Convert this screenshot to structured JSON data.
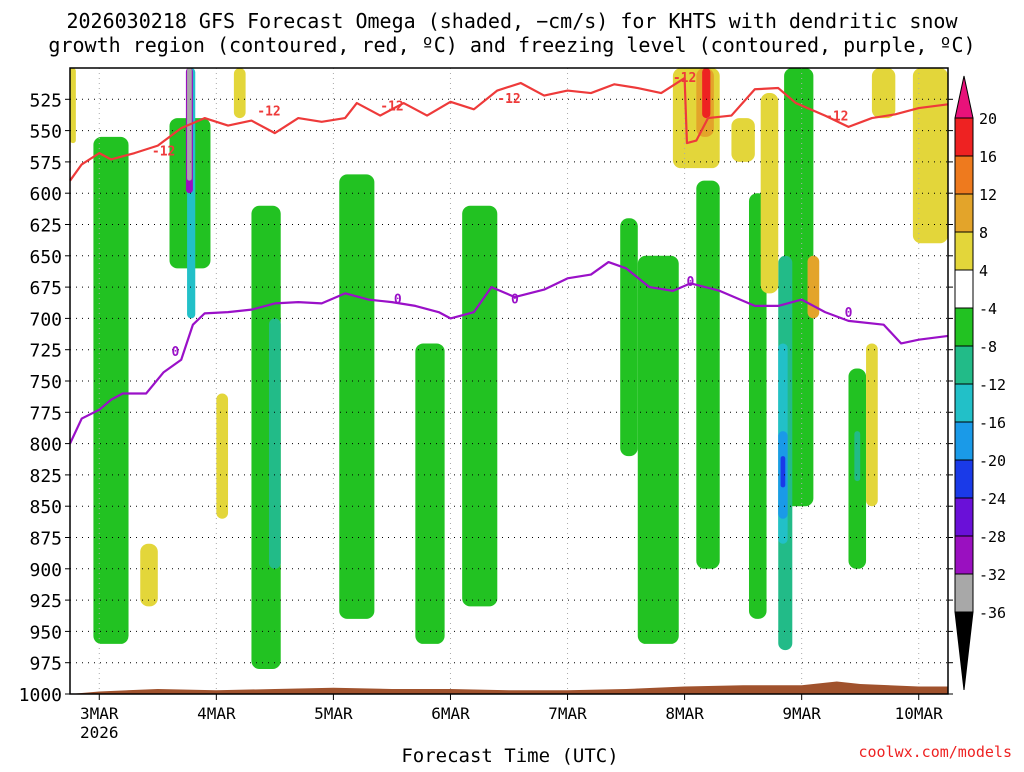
{
  "chart_data": {
    "type": "heatmap",
    "title_line1": "2026030218 GFS Forecast Omega (shaded, −cm/s) for KHTS with dendritic snow",
    "title_line2": "growth region (contoured, red, ºC) and freezing level (contoured, purple, ºC)",
    "xlabel": "Forecast Time (UTC)",
    "ylabel": "",
    "credit": "coolwx.com/models",
    "x_ticks": [
      {
        "day": 3.0,
        "label": "3MAR"
      },
      {
        "day": 4.0,
        "label": "4MAR"
      },
      {
        "day": 5.0,
        "label": "5MAR"
      },
      {
        "day": 6.0,
        "label": "6MAR"
      },
      {
        "day": 7.0,
        "label": "7MAR"
      },
      {
        "day": 8.0,
        "label": "8MAR"
      },
      {
        "day": 9.0,
        "label": "9MAR"
      },
      {
        "day": 10.0,
        "label": "10MAR"
      }
    ],
    "x_year_label": "2026",
    "xlim": [
      2.75,
      10.25
    ],
    "ylim": [
      1000,
      500
    ],
    "y_ticks": [
      1000,
      975,
      950,
      925,
      900,
      875,
      850,
      825,
      800,
      775,
      750,
      725,
      700,
      675,
      650,
      625,
      600,
      575,
      550,
      525
    ],
    "grid": true,
    "colorbar": {
      "levels": [
        20,
        16,
        12,
        8,
        4,
        -4,
        -8,
        -12,
        -16,
        -20,
        -24,
        -28,
        -32,
        -36
      ],
      "colors": [
        "#ff3a60",
        "#ee2222",
        "#ee7a1e",
        "#e3a42a",
        "#e3d63a",
        "#ffffff",
        "#22c222",
        "#22bb88",
        "#22c0c8",
        "#1a9ae8",
        "#1a3ae8",
        "#6a10d8",
        "#9a10c0",
        "#a8a8a8",
        "#000000"
      ],
      "top_arrow_color": "#e8127a",
      "bottom_arrow_color": "#000000"
    },
    "contour_dgz": {
      "label": "-12",
      "color": "#ee3a3a",
      "points": [
        [
          2.75,
          590
        ],
        [
          2.85,
          577
        ],
        [
          3.0,
          568
        ],
        [
          3.1,
          573
        ],
        [
          3.3,
          568
        ],
        [
          3.5,
          562
        ],
        [
          3.7,
          548
        ],
        [
          3.9,
          540
        ],
        [
          4.1,
          546
        ],
        [
          4.3,
          542
        ],
        [
          4.5,
          552
        ],
        [
          4.7,
          540
        ],
        [
          4.9,
          543
        ],
        [
          5.1,
          540
        ],
        [
          5.2,
          528
        ],
        [
          5.4,
          538
        ],
        [
          5.6,
          528
        ],
        [
          5.8,
          538
        ],
        [
          6.0,
          527
        ],
        [
          6.2,
          533
        ],
        [
          6.4,
          518
        ],
        [
          6.6,
          512
        ],
        [
          6.8,
          522
        ],
        [
          7.0,
          518
        ],
        [
          7.2,
          520
        ],
        [
          7.4,
          513
        ],
        [
          7.6,
          516
        ],
        [
          7.8,
          520
        ],
        [
          8.0,
          508
        ],
        [
          8.02,
          560
        ],
        [
          8.1,
          558
        ],
        [
          8.2,
          540
        ],
        [
          8.4,
          538
        ],
        [
          8.6,
          517
        ],
        [
          8.8,
          516
        ],
        [
          8.95,
          528
        ],
        [
          9.2,
          538
        ],
        [
          9.4,
          547
        ],
        [
          9.6,
          540
        ],
        [
          9.8,
          537
        ],
        [
          10.0,
          532
        ],
        [
          10.25,
          529
        ]
      ],
      "labels_at": [
        [
          3.55,
          566
        ],
        [
          4.45,
          534
        ],
        [
          5.5,
          530
        ],
        [
          6.5,
          524
        ],
        [
          8.0,
          507
        ],
        [
          9.3,
          538
        ]
      ]
    },
    "contour_freezing": {
      "label": "0",
      "color": "#9a10c8",
      "points": [
        [
          2.75,
          800
        ],
        [
          2.85,
          780
        ],
        [
          3.0,
          773
        ],
        [
          3.1,
          765
        ],
        [
          3.2,
          760
        ],
        [
          3.4,
          760
        ],
        [
          3.55,
          743
        ],
        [
          3.7,
          733
        ],
        [
          3.8,
          705
        ],
        [
          3.9,
          696
        ],
        [
          4.1,
          695
        ],
        [
          4.3,
          693
        ],
        [
          4.5,
          688
        ],
        [
          4.7,
          687
        ],
        [
          4.9,
          688
        ],
        [
          5.1,
          680
        ],
        [
          5.3,
          685
        ],
        [
          5.5,
          687
        ],
        [
          5.7,
          690
        ],
        [
          5.9,
          695
        ],
        [
          6.0,
          700
        ],
        [
          6.2,
          695
        ],
        [
          6.35,
          675
        ],
        [
          6.55,
          683
        ],
        [
          6.8,
          677
        ],
        [
          7.0,
          668
        ],
        [
          7.2,
          665
        ],
        [
          7.35,
          655
        ],
        [
          7.5,
          660
        ],
        [
          7.7,
          675
        ],
        [
          7.9,
          678
        ],
        [
          8.05,
          672
        ],
        [
          8.3,
          678
        ],
        [
          8.6,
          690
        ],
        [
          8.8,
          690
        ],
        [
          9.0,
          685
        ],
        [
          9.2,
          695
        ],
        [
          9.4,
          702
        ],
        [
          9.7,
          705
        ],
        [
          9.85,
          720
        ],
        [
          10.0,
          717
        ],
        [
          10.25,
          714
        ]
      ],
      "labels_at": [
        [
          3.65,
          726
        ],
        [
          5.55,
          684
        ],
        [
          6.55,
          684
        ],
        [
          8.05,
          670
        ],
        [
          9.4,
          695
        ]
      ]
    },
    "omega_regions": [
      {
        "t0": 2.95,
        "t1": 3.25,
        "p0": 555,
        "p1": 960,
        "level": -6
      },
      {
        "t0": 3.6,
        "t1": 3.95,
        "p0": 540,
        "p1": 660,
        "level": -6
      },
      {
        "t0": 4.3,
        "t1": 4.55,
        "p0": 610,
        "p1": 980,
        "level": -6
      },
      {
        "t0": 5.05,
        "t1": 5.35,
        "p0": 585,
        "p1": 940,
        "level": -6
      },
      {
        "t0": 5.7,
        "t1": 5.95,
        "p0": 720,
        "p1": 960,
        "level": -6
      },
      {
        "t0": 6.1,
        "t1": 6.4,
        "p0": 610,
        "p1": 930,
        "level": -6
      },
      {
        "t0": 7.45,
        "t1": 7.6,
        "p0": 620,
        "p1": 810,
        "level": -6
      },
      {
        "t0": 7.6,
        "t1": 7.95,
        "p0": 650,
        "p1": 960,
        "level": -6
      },
      {
        "t0": 8.1,
        "t1": 8.3,
        "p0": 590,
        "p1": 900,
        "level": -6
      },
      {
        "t0": 8.55,
        "t1": 8.7,
        "p0": 600,
        "p1": 940,
        "level": -6
      },
      {
        "t0": 8.85,
        "t1": 9.1,
        "p0": 500,
        "p1": 850,
        "level": -6
      },
      {
        "t0": 9.4,
        "t1": 9.55,
        "p0": 740,
        "p1": 900,
        "level": -6
      },
      {
        "t0": 4.45,
        "t1": 4.55,
        "p0": 700,
        "p1": 900,
        "level": -10
      },
      {
        "t0": 8.8,
        "t1": 8.92,
        "p0": 650,
        "p1": 965,
        "level": -10
      },
      {
        "t0": 9.45,
        "t1": 9.5,
        "p0": 790,
        "p1": 830,
        "level": -10
      },
      {
        "t0": 8.8,
        "t1": 8.88,
        "p0": 720,
        "p1": 880,
        "level": -14
      },
      {
        "t0": 8.8,
        "t1": 8.88,
        "p0": 790,
        "p1": 860,
        "level": -18
      },
      {
        "t0": 8.82,
        "t1": 8.86,
        "p0": 810,
        "p1": 835,
        "level": -22
      },
      {
        "t0": 3.75,
        "t1": 3.82,
        "p0": 500,
        "p1": 700,
        "level": -14
      },
      {
        "t0": 3.74,
        "t1": 3.8,
        "p0": 500,
        "p1": 600,
        "level": -30
      },
      {
        "t0": 3.75,
        "t1": 3.79,
        "p0": 500,
        "p1": 590,
        "level": -36
      },
      {
        "t0": 7.9,
        "t1": 8.3,
        "p0": 500,
        "p1": 580,
        "level": 6
      },
      {
        "t0": 8.1,
        "t1": 8.25,
        "p0": 500,
        "p1": 555,
        "level": 10
      },
      {
        "t0": 8.15,
        "t1": 8.22,
        "p0": 500,
        "p1": 540,
        "level": 18
      },
      {
        "t0": 8.4,
        "t1": 8.6,
        "p0": 540,
        "p1": 575,
        "level": 6
      },
      {
        "t0": 8.65,
        "t1": 8.8,
        "p0": 520,
        "p1": 680,
        "level": 6
      },
      {
        "t0": 9.05,
        "t1": 9.15,
        "p0": 650,
        "p1": 700,
        "level": 10
      },
      {
        "t0": 9.55,
        "t1": 9.65,
        "p0": 720,
        "p1": 850,
        "level": 6
      },
      {
        "t0": 9.95,
        "t1": 10.25,
        "p0": 500,
        "p1": 640,
        "level": 6
      },
      {
        "t0": 9.6,
        "t1": 9.8,
        "p0": 500,
        "p1": 540,
        "level": 6
      },
      {
        "t0": 3.35,
        "t1": 3.5,
        "p0": 880,
        "p1": 930,
        "level": 6
      },
      {
        "t0": 4.0,
        "t1": 4.1,
        "p0": 760,
        "p1": 860,
        "level": 6
      },
      {
        "t0": 2.75,
        "t1": 2.8,
        "p0": 500,
        "p1": 560,
        "level": 6
      },
      {
        "t0": 4.15,
        "t1": 4.25,
        "p0": 500,
        "p1": 540,
        "level": 6
      }
    ],
    "terrain": {
      "color": "#a0522d",
      "points": [
        [
          2.75,
          1000
        ],
        [
          3.0,
          998
        ],
        [
          3.5,
          996
        ],
        [
          4.0,
          997
        ],
        [
          4.5,
          996
        ],
        [
          5.0,
          995
        ],
        [
          5.5,
          996
        ],
        [
          6.0,
          996
        ],
        [
          6.5,
          997
        ],
        [
          7.0,
          997
        ],
        [
          7.5,
          996
        ],
        [
          8.0,
          994
        ],
        [
          8.5,
          993
        ],
        [
          9.0,
          993
        ],
        [
          9.3,
          990
        ],
        [
          9.5,
          992
        ],
        [
          10.0,
          994
        ],
        [
          10.25,
          994
        ]
      ]
    }
  }
}
